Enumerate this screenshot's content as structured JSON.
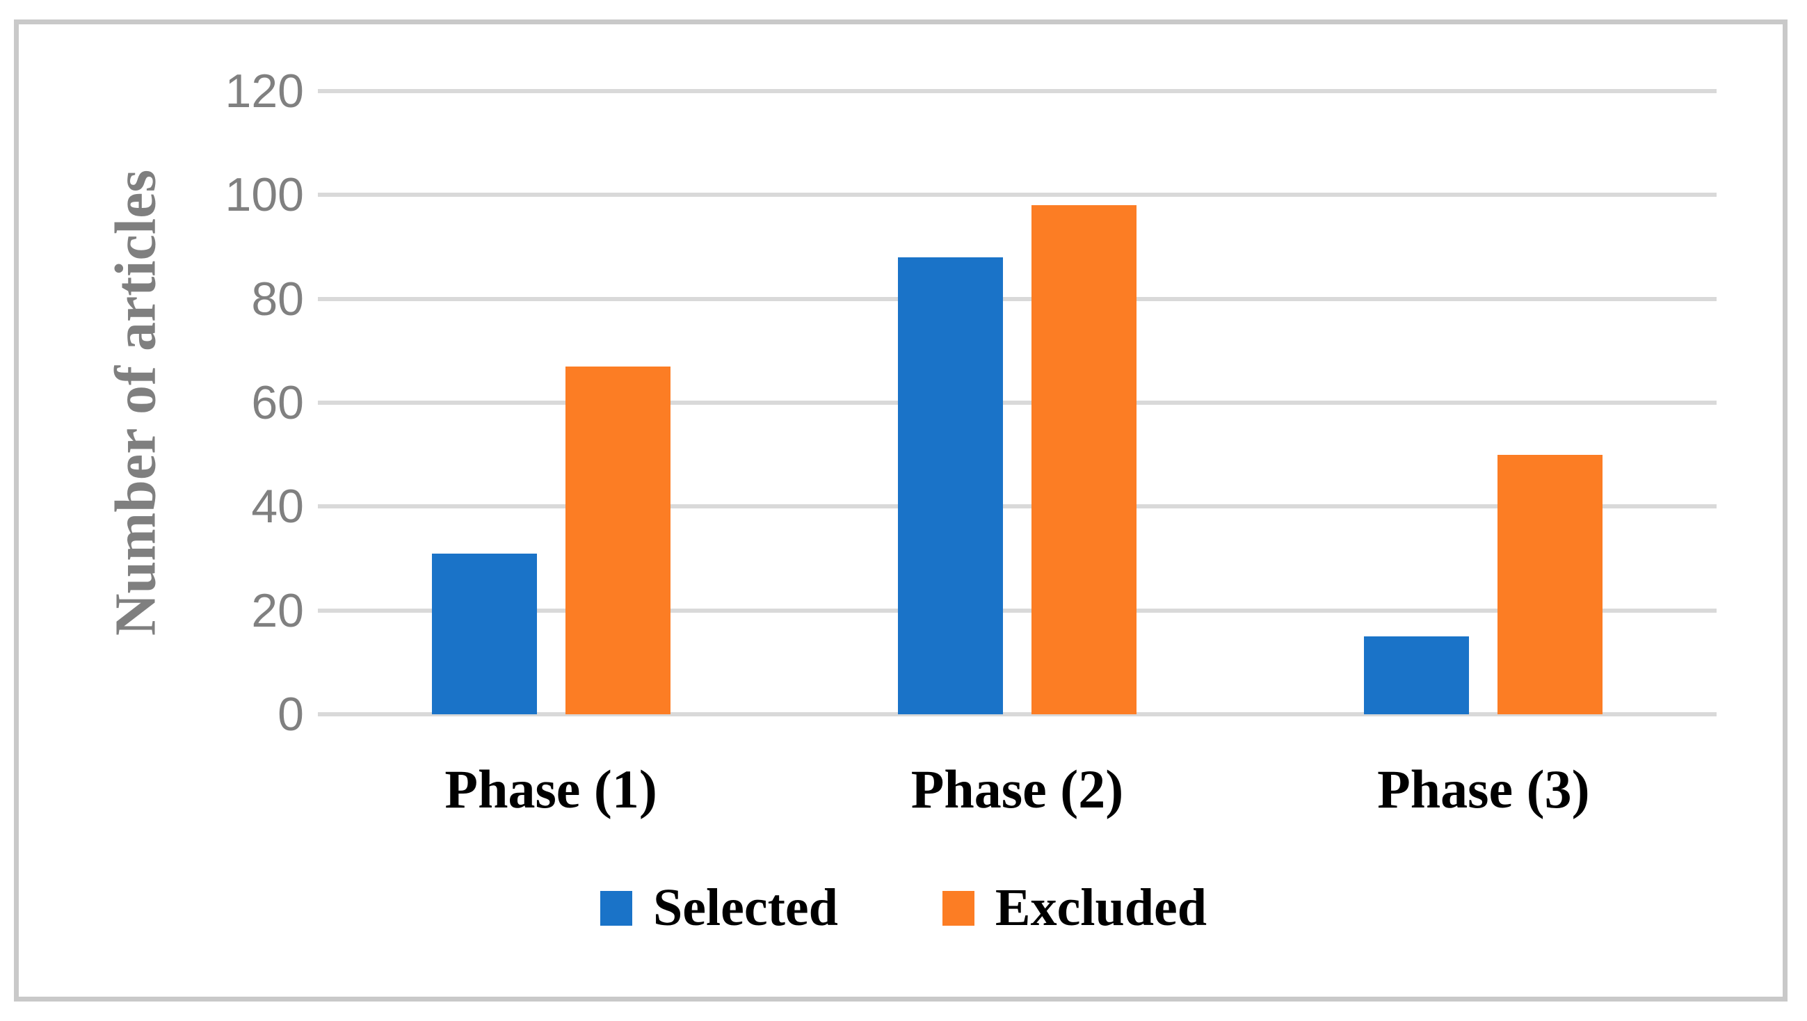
{
  "chart_data": {
    "type": "bar",
    "title": "",
    "categories": [
      "Phase (1)",
      "Phase (2)",
      "Phase (3)"
    ],
    "series": [
      {
        "name": "Selected",
        "color": "#1A73C8",
        "values": [
          31,
          88,
          15
        ]
      },
      {
        "name": "Excluded",
        "color": "#FC7D24",
        "values": [
          67,
          98,
          50
        ]
      }
    ],
    "xlabel": "",
    "ylabel": "Number of articles",
    "ylim": [
      0,
      120
    ],
    "yticks": [
      0,
      20,
      40,
      60,
      80,
      100,
      120
    ],
    "grid": "horizontal",
    "gridline_color": "#D9D9D9",
    "zero_line_color": "#D9D9D9",
    "legend_position": "bottom",
    "tick_label_color": "#808080",
    "axis_title_color": "#7F7F7F",
    "category_label_color": "#000000",
    "frame_color": "#C9C9C9",
    "background_color": "#FFFFFF"
  }
}
